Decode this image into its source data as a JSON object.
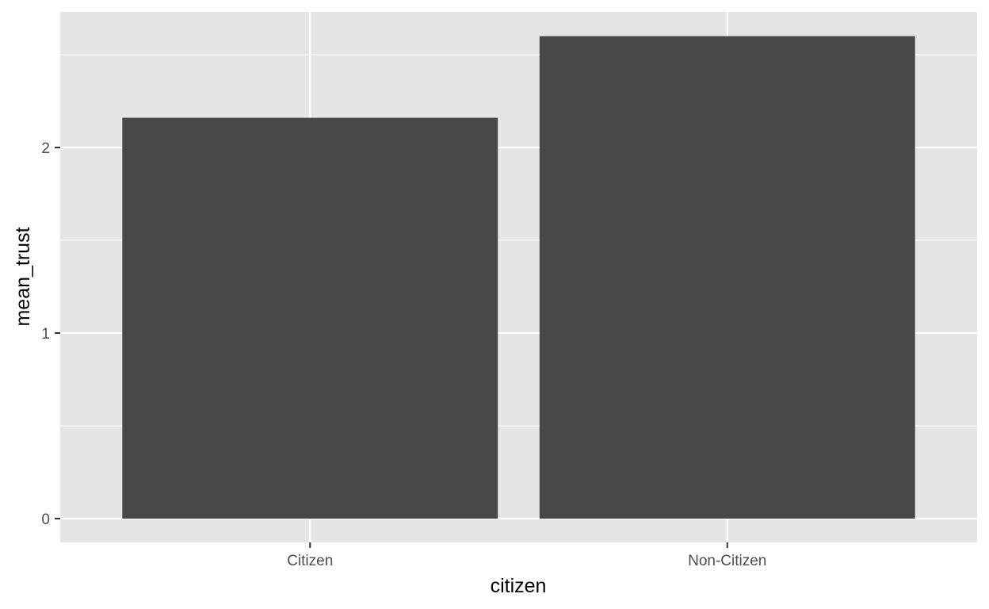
{
  "chart_data": {
    "type": "bar",
    "categories": [
      "Citizen",
      "Non-Citizen"
    ],
    "values": [
      2.16,
      2.6
    ],
    "xlabel": "citizen",
    "ylabel": "mean_trust",
    "ylim": [
      -0.13,
      2.73
    ],
    "y_ticks": [
      0,
      1,
      2
    ],
    "y_tick_labels": [
      "0",
      "1",
      "2"
    ],
    "y_minor_ticks": [
      0.5,
      1.5,
      2.5
    ],
    "grid": true,
    "legend": "none",
    "colors": {
      "panel_background": "#e5e5e5",
      "grid": "#ffffff",
      "bar_fill": "#474747",
      "tick": "#333333",
      "tick_label": "#4d4d4d",
      "axis_title": "#000000"
    }
  }
}
